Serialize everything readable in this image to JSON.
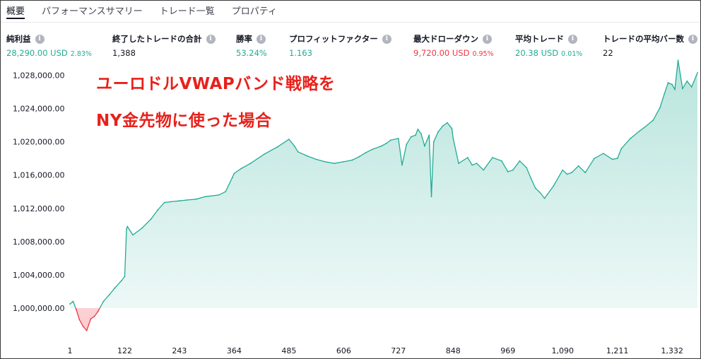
{
  "tabs": [
    {
      "label": "概要",
      "active": true
    },
    {
      "label": "パフォーマンスサマリー",
      "active": false
    },
    {
      "label": "トレード一覧",
      "active": false
    },
    {
      "label": "プロパティ",
      "active": false
    }
  ],
  "stats": [
    {
      "label": "純利益",
      "value": "28,290.00 USD",
      "pct": "2.83%",
      "color": "green"
    },
    {
      "label": "終了したトレードの合計",
      "value": "1,388",
      "pct": "",
      "color": "plain"
    },
    {
      "label": "勝率",
      "value": "53.24%",
      "pct": "",
      "color": "green"
    },
    {
      "label": "プロフィットファクター",
      "value": "1.163",
      "pct": "",
      "color": "green"
    },
    {
      "label": "最大ドローダウン",
      "value": "9,720.00 USD",
      "pct": "0.95%",
      "color": "red"
    },
    {
      "label": "平均トレード",
      "value": "20.38 USD",
      "pct": "0.01%",
      "color": "green"
    },
    {
      "label": "トレードの平均バー数",
      "value": "22",
      "pct": "",
      "color": "plain"
    }
  ],
  "annotation": {
    "line1": "ユーロドルVWAPバンド戦略を",
    "line2": "NY金先物に使った場合"
  },
  "colors": {
    "profit_line": "#22ab94",
    "profit_fill": "#22ab94",
    "loss_line": "#f23645",
    "annotation": "#e8211b"
  },
  "icons": {
    "info": "info-circle-icon"
  },
  "chart_data": {
    "type": "area",
    "title": "",
    "xlabel": "",
    "ylabel": "",
    "baseline": 1000000,
    "xlim": [
      1,
      1388
    ],
    "ylim": [
      996000,
      1030000
    ],
    "x_ticks": [
      1,
      122,
      243,
      364,
      485,
      606,
      727,
      848,
      969,
      1090,
      1211,
      1332
    ],
    "x_tick_labels": [
      "1",
      "122",
      "243",
      "364",
      "485",
      "606",
      "727",
      "848",
      "969",
      "1,090",
      "1,211",
      "1,332"
    ],
    "y_ticks": [
      1000000,
      1004000,
      1008000,
      1012000,
      1016000,
      1020000,
      1024000,
      1028000
    ],
    "y_tick_labels": [
      "1,000,000.00",
      "1,004,000.00",
      "1,008,000.00",
      "1,012,000.00",
      "1,016,000.00",
      "1,020,000.00",
      "1,024,000.00",
      "1,028,000.00"
    ],
    "series": [
      {
        "x": [
          1,
          8,
          15,
          22,
          30,
          38,
          47,
          55,
          63,
          75,
          88,
          100,
          115,
          122,
          126,
          128,
          140,
          160,
          180,
          195,
          210,
          225,
          243,
          260,
          280,
          300,
          330,
          345,
          360,
          364,
          380,
          400,
          430,
          460,
          485,
          497,
          505,
          525,
          545,
          565,
          585,
          606,
          625,
          640,
          655,
          670,
          690,
          700,
          710,
          727,
          735,
          745,
          755,
          765,
          770,
          777,
          785,
          795,
          800,
          805,
          815,
          825,
          835,
          845,
          848,
          860,
          880,
          890,
          900,
          915,
          935,
          955,
          969,
          980,
          995,
          1010,
          1020,
          1030,
          1040,
          1050,
          1070,
          1090,
          1100,
          1110,
          1125,
          1140,
          1160,
          1180,
          1200,
          1211,
          1220,
          1240,
          1260,
          1270,
          1290,
          1305,
          1315,
          1323,
          1332,
          1338,
          1345,
          1355,
          1365,
          1375,
          1388
        ],
        "y": [
          1000500,
          1000800,
          999800,
          998600,
          997800,
          997300,
          998700,
          999000,
          999600,
          1000800,
          1001600,
          1002400,
          1003300,
          1003800,
          1009500,
          1009800,
          1008800,
          1009600,
          1010700,
          1011800,
          1012700,
          1012800,
          1012900,
          1013000,
          1013100,
          1013400,
          1013600,
          1014000,
          1015700,
          1016200,
          1016800,
          1017400,
          1018500,
          1019400,
          1020300,
          1019500,
          1018800,
          1018300,
          1017900,
          1017600,
          1017400,
          1017600,
          1017800,
          1018200,
          1018700,
          1019100,
          1019500,
          1019800,
          1020200,
          1020400,
          1017200,
          1019700,
          1020600,
          1020800,
          1021500,
          1021000,
          1019500,
          1020800,
          1013400,
          1020000,
          1021200,
          1021900,
          1022300,
          1021600,
          1020400,
          1017400,
          1018100,
          1017200,
          1017400,
          1016600,
          1018100,
          1017700,
          1016400,
          1016600,
          1017700,
          1016900,
          1015600,
          1014400,
          1013900,
          1013200,
          1014700,
          1016600,
          1016100,
          1016300,
          1017100,
          1016300,
          1018000,
          1018600,
          1017900,
          1018000,
          1019200,
          1020400,
          1021300,
          1021700,
          1022600,
          1024100,
          1025800,
          1027100,
          1026900,
          1026300,
          1029800,
          1026400,
          1027300,
          1026600,
          1028300
        ]
      }
    ]
  }
}
